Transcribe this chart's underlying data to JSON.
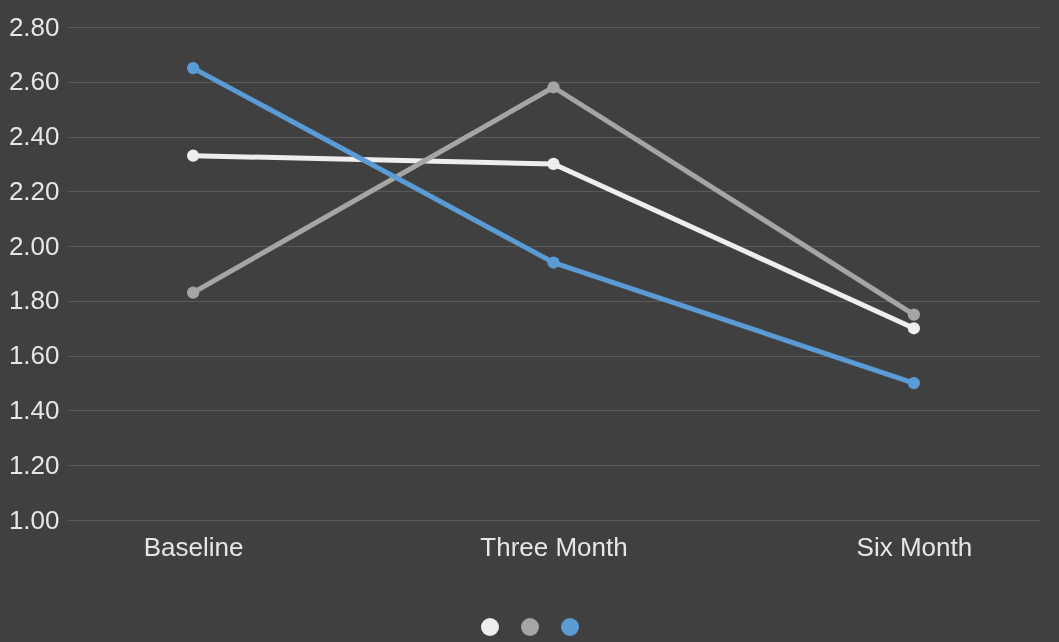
{
  "chart_data": {
    "type": "line",
    "categories": [
      "Baseline",
      "Three Month",
      "Six Month"
    ],
    "series": [
      {
        "color": "#eeeeee",
        "values": [
          2.33,
          2.3,
          1.7
        ]
      },
      {
        "color": "#a5a5a5",
        "values": [
          1.83,
          2.58,
          1.75
        ]
      },
      {
        "color": "#5b9bd5",
        "values": [
          2.65,
          1.94,
          1.5
        ]
      }
    ],
    "ylim": [
      1.0,
      2.8
    ],
    "yticks": [
      {
        "value": 1.0,
        "label": "1.00"
      },
      {
        "value": 1.2,
        "label": "1.20"
      },
      {
        "value": 1.4,
        "label": "1.40"
      },
      {
        "value": 1.6,
        "label": "1.60"
      },
      {
        "value": 1.8,
        "label": "1.80"
      },
      {
        "value": 2.0,
        "label": "2.00"
      },
      {
        "value": 2.2,
        "label": "2.20"
      },
      {
        "value": 2.4,
        "label": "2.40"
      },
      {
        "value": 2.6,
        "label": "2.60"
      },
      {
        "value": 2.8,
        "label": "2.80"
      }
    ],
    "grid": "y",
    "marker": "circle",
    "line_style": "solid"
  }
}
